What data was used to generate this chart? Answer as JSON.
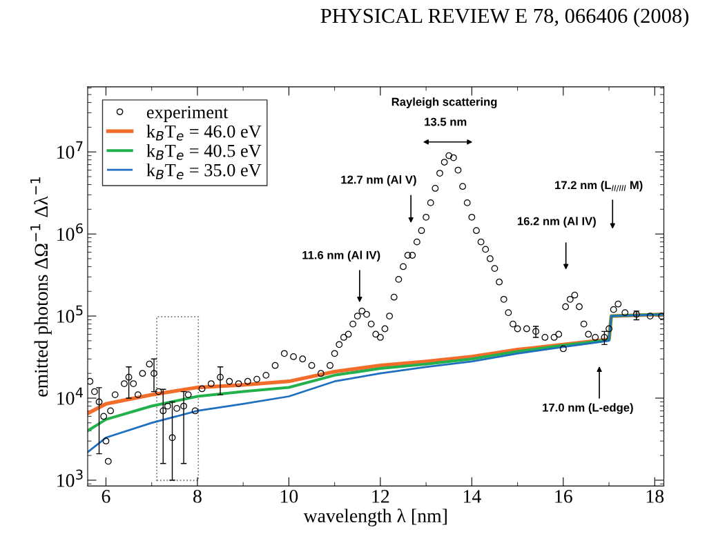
{
  "chart_data": {
    "type": "scatter",
    "xlabel": "wavelength λ [nm]",
    "ylabel": "emitted photons ΔΩ$^{−1}$ Δλ$^{−1}$",
    "log": "y",
    "xlim": [
      5.6,
      18.2
    ],
    "ylim": [
      850,
      62000000
    ],
    "xticks": [
      6,
      8,
      10,
      12,
      14,
      16,
      18
    ],
    "yticks": [
      {
        "value": 1000,
        "label": "10$^{3}$"
      },
      {
        "value": 10000,
        "label": "10$^{4}$"
      },
      {
        "value": 100000,
        "label": "10$^{5}$"
      },
      {
        "value": 1000000,
        "label": "10$^{6}$"
      },
      {
        "value": 10000000,
        "label": "10$^{7}$"
      }
    ],
    "grid": false,
    "legend": "top left",
    "series": [
      {
        "name": "experiment",
        "marker": "circle",
        "color": "#000000",
        "x": [
          5.65,
          5.75,
          5.85,
          5.95,
          6.0,
          6.05,
          6.1,
          6.2,
          6.4,
          6.5,
          6.6,
          6.7,
          6.8,
          6.95,
          7.05,
          7.15,
          7.25,
          7.35,
          7.45,
          7.55,
          7.7,
          7.8,
          7.95,
          8.1,
          8.3,
          8.5,
          8.7,
          8.9,
          9.1,
          9.3,
          9.5,
          9.7,
          9.9,
          10.1,
          10.3,
          10.5,
          10.7,
          10.9,
          11.0,
          11.1,
          11.2,
          11.3,
          11.4,
          11.5,
          11.6,
          11.7,
          11.8,
          11.9,
          12.0,
          12.1,
          12.2,
          12.3,
          12.4,
          12.5,
          12.6,
          12.7,
          12.8,
          12.9,
          13.0,
          13.1,
          13.2,
          13.3,
          13.4,
          13.5,
          13.6,
          13.7,
          13.8,
          13.9,
          14.0,
          14.1,
          14.2,
          14.3,
          14.4,
          14.5,
          14.6,
          14.7,
          14.8,
          14.9,
          15.0,
          15.2,
          15.4,
          15.6,
          15.8,
          15.9,
          16.0,
          16.05,
          16.15,
          16.25,
          16.35,
          16.45,
          16.55,
          16.7,
          16.9,
          17.0,
          17.1,
          17.2,
          17.35,
          17.6,
          17.9,
          18.15
        ],
        "values": [
          16000,
          12000,
          9000,
          6000,
          3000,
          1700,
          7000,
          11000,
          15000,
          18000,
          15000,
          11000,
          20000,
          26000,
          20000,
          12000,
          7000,
          8000,
          3300,
          7500,
          8000,
          11000,
          7000,
          13000,
          15000,
          18000,
          16000,
          15000,
          16000,
          17000,
          19000,
          25000,
          35000,
          32000,
          30000,
          25000,
          20000,
          25000,
          35000,
          45000,
          55000,
          60000,
          80000,
          100000,
          115000,
          105000,
          80000,
          60000,
          55000,
          70000,
          100000,
          170000,
          280000,
          400000,
          550000,
          550000,
          800000,
          1100000,
          1600000,
          2400000,
          3600000,
          5500000,
          7500000,
          9000000,
          8500000,
          6000000,
          3800000,
          2400000,
          1600000,
          1100000,
          800000,
          650000,
          500000,
          380000,
          260000,
          160000,
          110000,
          80000,
          70000,
          70000,
          65000,
          55000,
          55000,
          60000,
          40000,
          130000,
          160000,
          180000,
          130000,
          80000,
          60000,
          55000,
          55000,
          70000,
          120000,
          140000,
          110000,
          105000,
          100000,
          100000
        ],
        "errors": [
          null,
          null,
          [
            2100,
            13400
          ],
          null,
          null,
          null,
          null,
          null,
          null,
          [
            10000,
            24000
          ],
          null,
          null,
          null,
          null,
          [
            12000,
            30000
          ],
          null,
          [
            1600,
            12800
          ],
          null,
          [
            1000,
            9000
          ],
          null,
          [
            1600,
            12000
          ],
          null,
          null,
          null,
          null,
          [
            11000,
            24000
          ],
          null,
          null,
          null,
          null,
          null,
          null,
          null,
          null,
          null,
          null,
          null,
          null,
          null,
          null,
          null,
          null,
          null,
          null,
          null,
          null,
          null,
          null,
          null,
          null,
          null,
          null,
          null,
          null,
          null,
          null,
          null,
          null,
          null,
          null,
          null,
          null,
          null,
          null,
          null,
          null,
          null,
          null,
          null,
          null,
          null,
          null,
          null,
          null,
          null,
          null,
          null,
          null,
          null,
          null,
          [
            55000,
            75000
          ],
          null,
          null,
          null,
          null,
          null,
          null,
          null,
          null,
          null,
          null,
          null,
          [
            45000,
            65000
          ],
          null,
          null,
          null,
          null,
          [
            90000,
            115000
          ],
          null,
          null
        ]
      },
      {
        "name": "k$_{B}$T$_{e}$ = 46.0 eV",
        "type": "line",
        "color": "#f26d2a",
        "x": [
          5.6,
          6,
          7,
          8,
          9,
          10,
          11,
          12,
          13,
          14,
          15,
          16,
          17,
          17.05,
          18.2
        ],
        "values": [
          6500,
          8500,
          11000,
          13500,
          14500,
          16000,
          21000,
          25000,
          28000,
          32000,
          39000,
          45000,
          52000,
          100000,
          105000
        ]
      },
      {
        "name": "k$_{B}$T$_{e}$ = 40.5 eV",
        "type": "line",
        "color": "#22b14c",
        "x": [
          5.6,
          6,
          7,
          8,
          9,
          10,
          11,
          12,
          13,
          14,
          15,
          16,
          17,
          17.05,
          18.2
        ],
        "values": [
          4000,
          5500,
          8000,
          10500,
          12000,
          13500,
          19000,
          23000,
          26000,
          30000,
          37000,
          44000,
          51000,
          100000,
          105000
        ]
      },
      {
        "name": "k$_{B}$T$_{e}$ = 35.0 eV",
        "type": "line",
        "color": "#1f6fc0",
        "x": [
          5.6,
          6,
          7,
          8,
          9,
          10,
          11,
          12,
          13,
          14,
          15,
          16,
          17,
          17.05,
          18.2
        ],
        "values": [
          2200,
          3300,
          5000,
          7000,
          8500,
          10500,
          16000,
          20000,
          24000,
          28000,
          35000,
          42000,
          50000,
          100000,
          105000
        ]
      }
    ],
    "annotations": [
      "PHYSICAL REVIEW E 78, 066406 (2008)",
      "Rayleigh scattering",
      "13.5 nm",
      "12.7 nm (Al V)",
      "11.6 nm (Al IV)",
      "16.2 nm (Al IV)",
      "17.2 nm (L$_{II/III}$ M)",
      "17.0 nm (L-edge)"
    ]
  }
}
